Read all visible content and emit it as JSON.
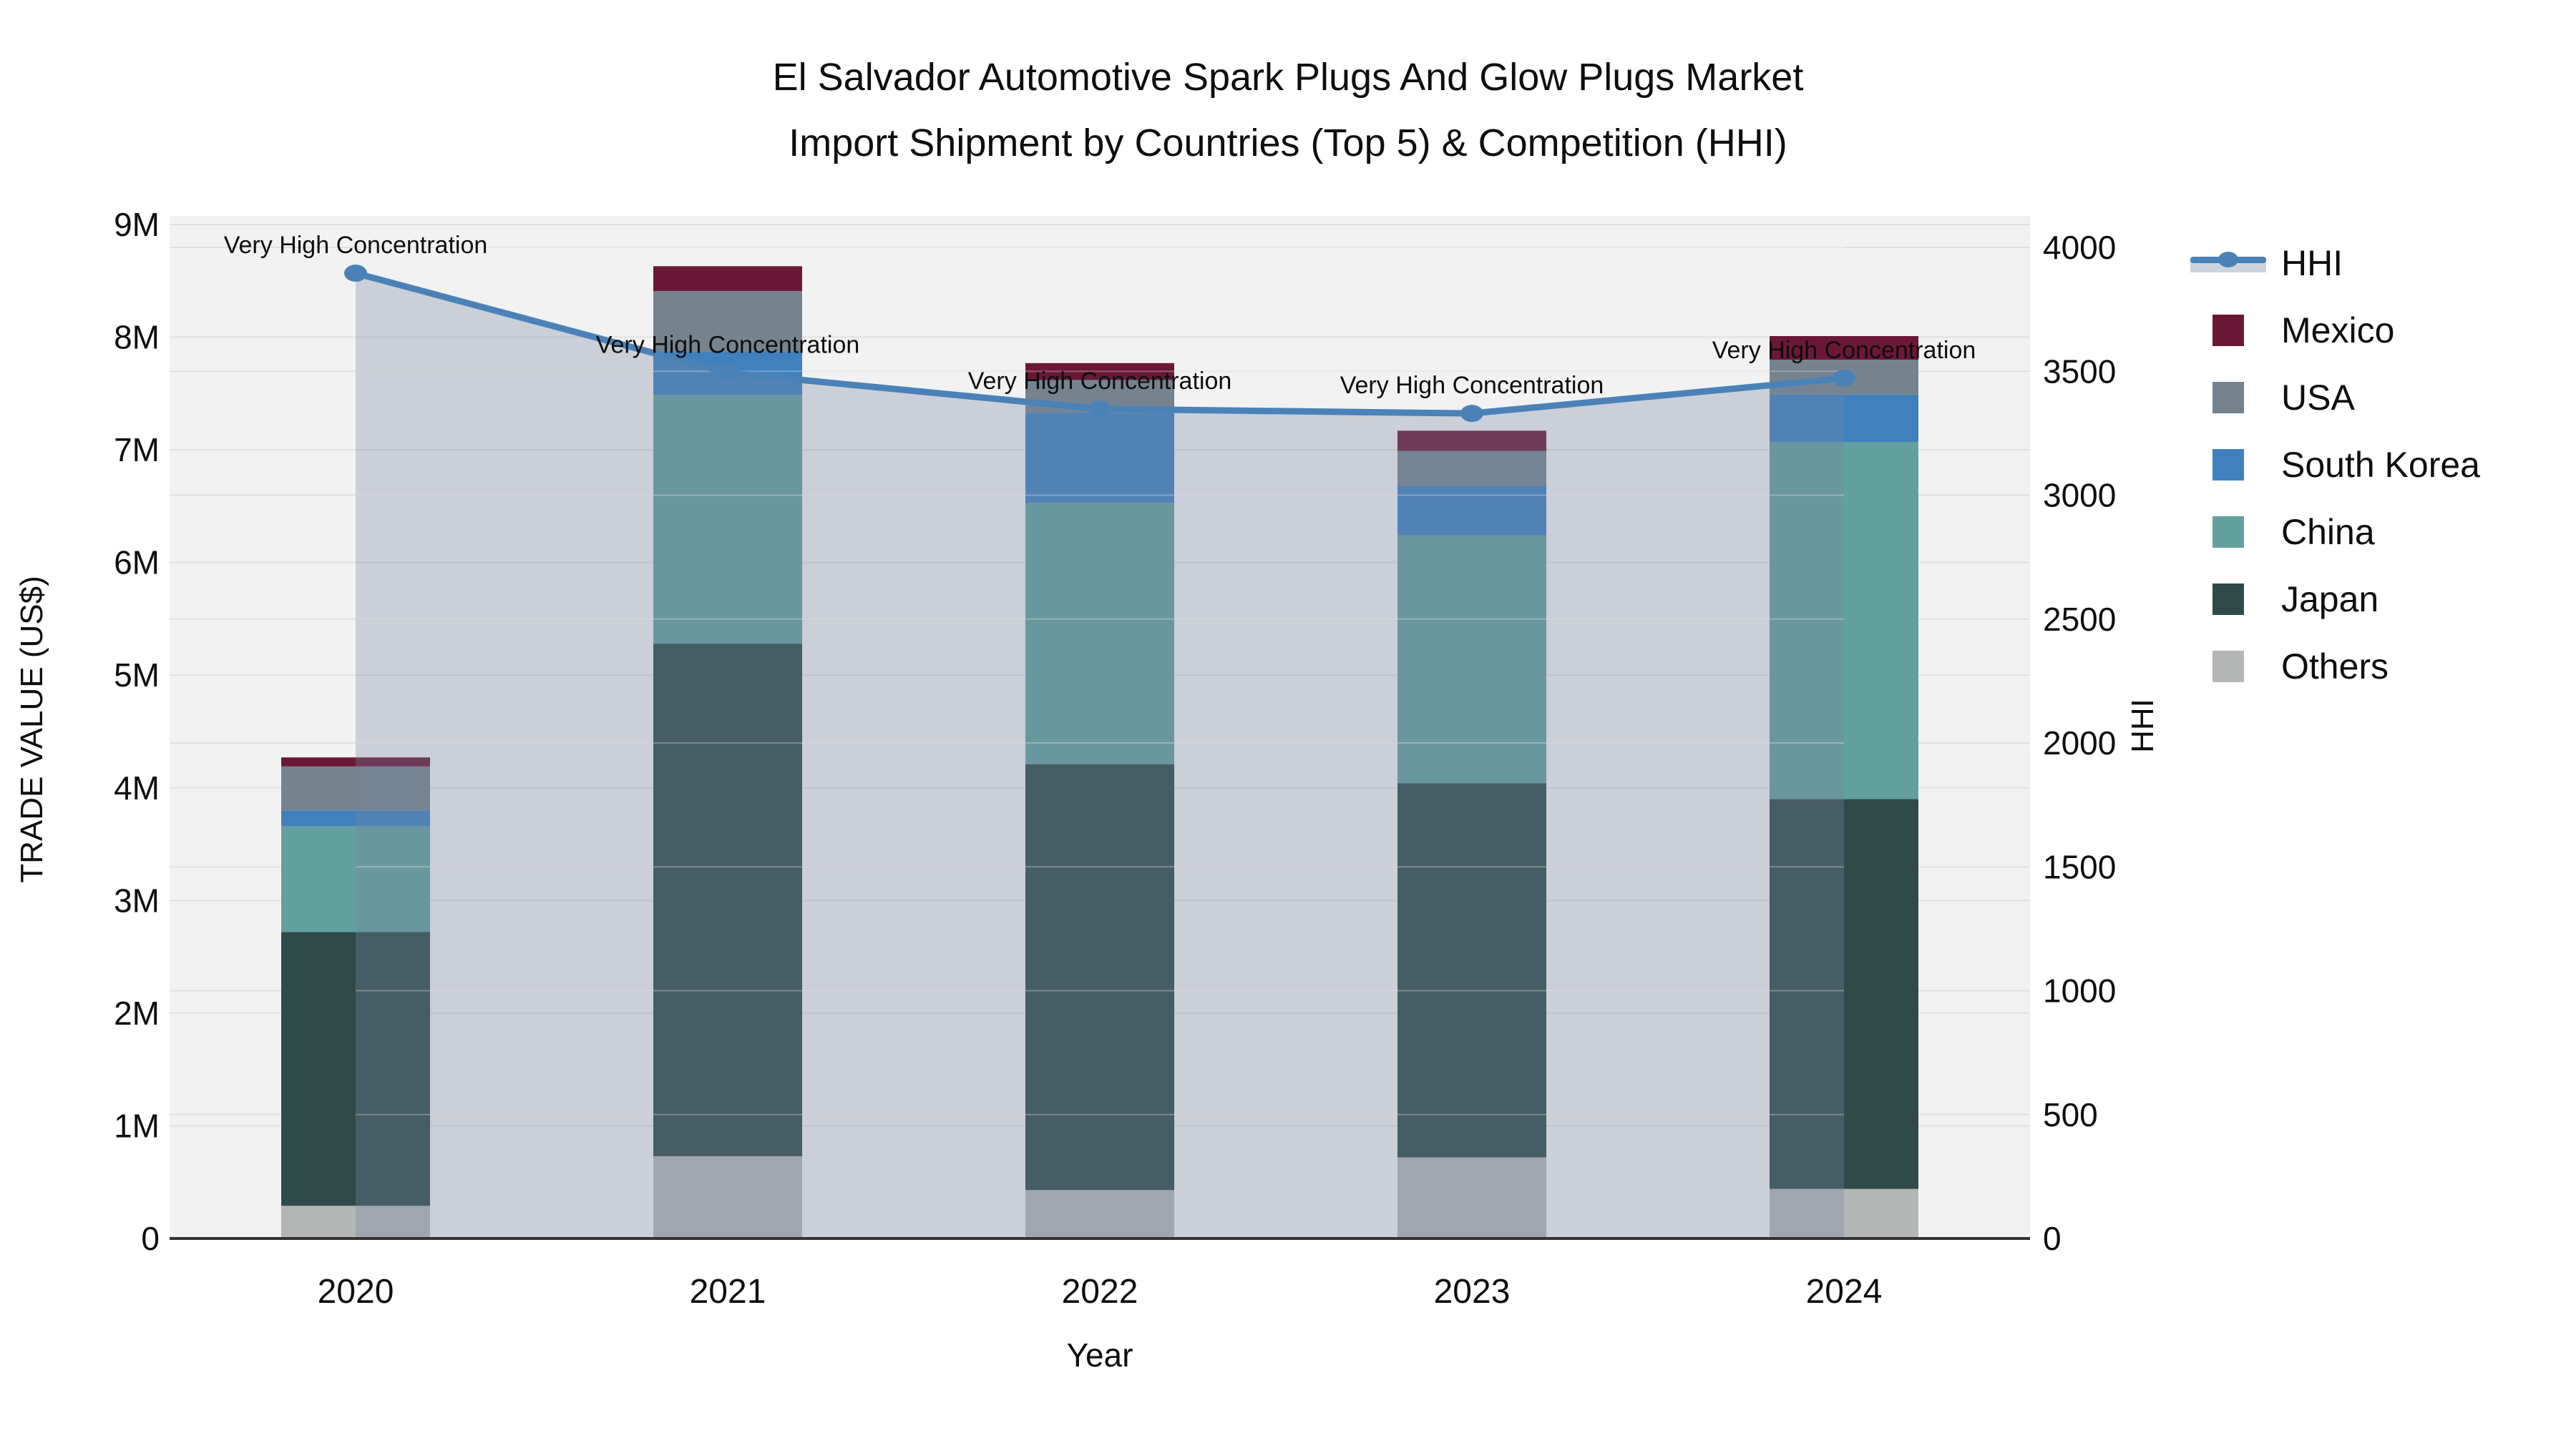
{
  "title": {
    "line1": "El Salvador Automotive Spark Plugs And Glow Plugs Market",
    "line2": "Import Shipment by Countries (Top 5) & Competition (HHI)"
  },
  "axes": {
    "y_left": {
      "title": "TRADE VALUE (US$)",
      "ticks": [
        "0",
        "1M",
        "2M",
        "3M",
        "4M",
        "5M",
        "6M",
        "7M",
        "8M",
        "9M"
      ],
      "range": [
        0,
        9000000
      ]
    },
    "y_right": {
      "title": "HHI",
      "ticks": [
        "0",
        "500",
        "1000",
        "1500",
        "2000",
        "2500",
        "3000",
        "3500",
        "4000"
      ],
      "range": [
        0,
        4000
      ]
    },
    "x": {
      "title": "Year",
      "categories": [
        "2020",
        "2021",
        "2022",
        "2023",
        "2024"
      ]
    }
  },
  "legend": [
    {
      "label": "HHI",
      "type": "line",
      "color": "#4a82b8"
    },
    {
      "label": "Mexico",
      "type": "box",
      "color": "#6b1837"
    },
    {
      "label": "USA",
      "type": "box",
      "color": "#75838f"
    },
    {
      "label": "South Korea",
      "type": "box",
      "color": "#4080bf"
    },
    {
      "label": "China",
      "type": "box",
      "color": "#63a0a0"
    },
    {
      "label": "Japan",
      "type": "box",
      "color": "#2e4b49"
    },
    {
      "label": "Others",
      "type": "box",
      "color": "#b4b6b6"
    }
  ],
  "chart_data": {
    "type": "bar",
    "subtype": "stacked-bar-with-dual-axis-line-area",
    "title": "El Salvador Automotive Spark Plugs And Glow Plugs Market Import Shipment by Countries (Top 5) & Competition (HHI)",
    "categories": [
      "2020",
      "2021",
      "2022",
      "2023",
      "2024"
    ],
    "unit": "US$ millions",
    "xlabel": "Year",
    "ylabel_left": "TRADE VALUE (US$)",
    "ylabel_right": "HHI",
    "ylim_left": [
      0,
      9000000
    ],
    "ylim_right": [
      0,
      4000
    ],
    "grid": true,
    "legend_position": "right",
    "series": [
      {
        "name": "Others",
        "color": "#b4b6b6",
        "values_musd": [
          0.29,
          0.73,
          0.43,
          0.72,
          0.44
        ]
      },
      {
        "name": "Japan",
        "color": "#2e4b49",
        "values_musd": [
          2.43,
          4.55,
          3.78,
          3.32,
          3.46
        ]
      },
      {
        "name": "China",
        "color": "#63a0a0",
        "values_musd": [
          0.94,
          2.21,
          2.32,
          2.2,
          3.17
        ]
      },
      {
        "name": "South Korea",
        "color": "#4080bf",
        "values_musd": [
          0.14,
          0.38,
          0.8,
          0.44,
          0.42
        ]
      },
      {
        "name": "USA",
        "color": "#75838f",
        "values_musd": [
          0.39,
          0.54,
          0.29,
          0.31,
          0.31
        ]
      },
      {
        "name": "Mexico",
        "color": "#6b1837",
        "values_musd": [
          0.08,
          0.22,
          0.15,
          0.18,
          0.21
        ]
      }
    ],
    "bar_totals_musd": [
      4.27,
      8.63,
      7.77,
      7.17,
      8.01
    ],
    "line_series": {
      "name": "HHI",
      "axis": "right",
      "color": "#4a82b8",
      "area_fill": true,
      "values": [
        3896,
        3494,
        3348,
        3330,
        3472
      ]
    },
    "annotations": [
      "Very High Concentration",
      "Very High Concentration",
      "Very High Concentration",
      "Very High Concentration",
      "Very High Concentration"
    ]
  },
  "colors": {
    "background": "#ffffff",
    "plot_background": "#f2f2f2",
    "grid": "#e1e1e1",
    "grid_over_fill": "rgba(255,255,255,0.28)",
    "axis_line": "#333333",
    "text": "#0e0e0e",
    "hhi_area_fill": "rgba(119,135,162,0.32)"
  }
}
